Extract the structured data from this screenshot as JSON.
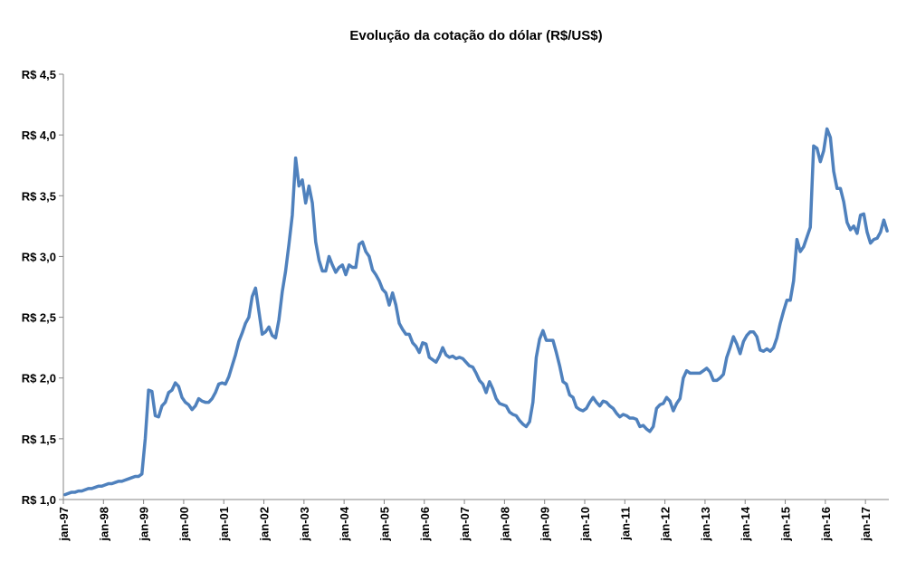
{
  "chart_data": {
    "type": "line",
    "title": "Evolução da cotação do dólar (R$/US$)",
    "xlabel": "",
    "ylabel": "",
    "ylim": [
      1.0,
      4.5
    ],
    "grid": false,
    "legend": "none",
    "y_ticks": [
      1.0,
      1.5,
      2.0,
      2.5,
      3.0,
      3.5,
      4.0,
      4.5
    ],
    "y_tick_labels": [
      "R$ 1,0",
      "R$ 1,5",
      "R$ 2,0",
      "R$ 2,5",
      "R$ 3,0",
      "R$ 3,5",
      "R$ 4,0",
      "R$ 4,5"
    ],
    "x_tick_labels": [
      "jan-97",
      "jan-98",
      "jan-99",
      "jan-00",
      "jan-01",
      "jan-02",
      "jan-03",
      "jan-04",
      "jan-05",
      "jan-06",
      "jan-07",
      "jan-08",
      "jan-09",
      "jan-10",
      "jan-11",
      "jan-12",
      "jan-13",
      "jan-14",
      "jan-15",
      "jan-16",
      "jan-17"
    ],
    "series": [
      {
        "name": "R$/US$",
        "color": "#4f81bd",
        "start": "jan-97",
        "frequency": "monthly",
        "values": [
          1.04,
          1.05,
          1.06,
          1.06,
          1.07,
          1.07,
          1.08,
          1.09,
          1.09,
          1.1,
          1.11,
          1.11,
          1.12,
          1.13,
          1.13,
          1.14,
          1.15,
          1.15,
          1.16,
          1.17,
          1.18,
          1.19,
          1.19,
          1.21,
          1.5,
          1.9,
          1.89,
          1.69,
          1.68,
          1.77,
          1.8,
          1.88,
          1.9,
          1.96,
          1.93,
          1.84,
          1.8,
          1.78,
          1.74,
          1.77,
          1.83,
          1.81,
          1.8,
          1.8,
          1.83,
          1.88,
          1.95,
          1.96,
          1.95,
          2.01,
          2.1,
          2.19,
          2.3,
          2.37,
          2.45,
          2.5,
          2.67,
          2.74,
          2.55,
          2.36,
          2.38,
          2.42,
          2.35,
          2.33,
          2.48,
          2.71,
          2.88,
          3.1,
          3.34,
          3.81,
          3.58,
          3.63,
          3.44,
          3.58,
          3.44,
          3.12,
          2.97,
          2.88,
          2.88,
          3.0,
          2.93,
          2.87,
          2.91,
          2.93,
          2.85,
          2.93,
          2.91,
          2.91,
          3.1,
          3.12,
          3.04,
          3.0,
          2.89,
          2.85,
          2.8,
          2.73,
          2.7,
          2.6,
          2.7,
          2.6,
          2.45,
          2.4,
          2.36,
          2.36,
          2.29,
          2.26,
          2.21,
          2.29,
          2.28,
          2.17,
          2.15,
          2.13,
          2.18,
          2.25,
          2.19,
          2.17,
          2.18,
          2.16,
          2.17,
          2.16,
          2.13,
          2.1,
          2.09,
          2.04,
          1.98,
          1.95,
          1.88,
          1.97,
          1.91,
          1.83,
          1.79,
          1.78,
          1.77,
          1.72,
          1.7,
          1.69,
          1.65,
          1.62,
          1.6,
          1.64,
          1.8,
          2.17,
          2.32,
          2.39,
          2.31,
          2.31,
          2.31,
          2.21,
          2.1,
          1.97,
          1.95,
          1.86,
          1.84,
          1.76,
          1.74,
          1.73,
          1.75,
          1.8,
          1.84,
          1.8,
          1.77,
          1.81,
          1.8,
          1.77,
          1.75,
          1.71,
          1.68,
          1.7,
          1.69,
          1.67,
          1.67,
          1.66,
          1.6,
          1.61,
          1.58,
          1.56,
          1.6,
          1.75,
          1.78,
          1.79,
          1.84,
          1.81,
          1.73,
          1.79,
          1.83,
          2.0,
          2.06,
          2.04,
          2.04,
          2.04,
          2.04,
          2.06,
          2.08,
          2.05,
          1.98,
          1.98,
          2.0,
          2.03,
          2.17,
          2.25,
          2.34,
          2.28,
          2.2,
          2.3,
          2.35,
          2.38,
          2.38,
          2.34,
          2.23,
          2.22,
          2.24,
          2.22,
          2.25,
          2.33,
          2.45,
          2.55,
          2.64,
          2.64,
          2.8,
          3.14,
          3.04,
          3.08,
          3.16,
          3.24,
          3.91,
          3.89,
          3.78,
          3.87,
          4.05,
          3.98,
          3.7,
          3.56,
          3.56,
          3.45,
          3.28,
          3.22,
          3.25,
          3.19,
          3.34,
          3.35,
          3.2,
          3.11,
          3.14,
          3.15,
          3.2,
          3.3,
          3.21
        ]
      }
    ]
  }
}
